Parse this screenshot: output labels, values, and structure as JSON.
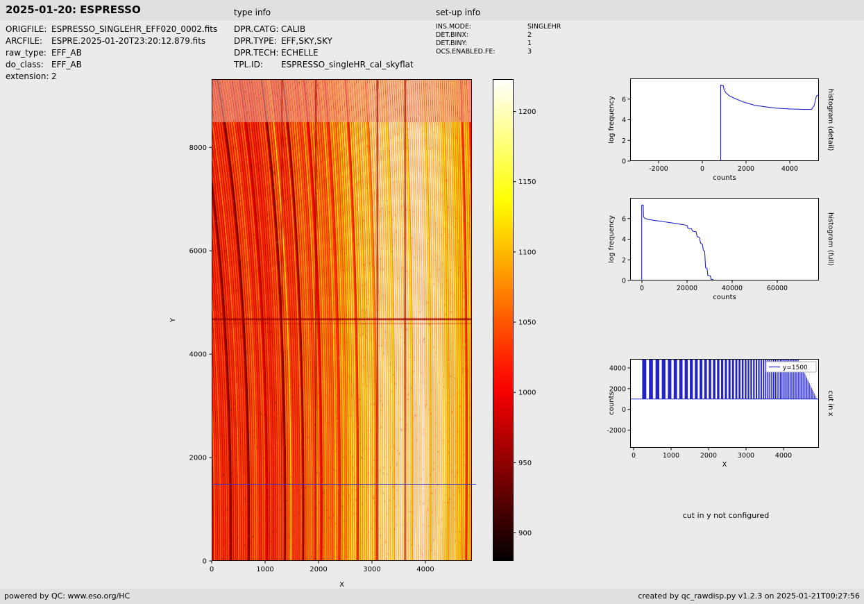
{
  "header": {
    "title": "2025-01-20: ESPRESSO",
    "type_info_label": "type info",
    "setup_info_label": "set-up info"
  },
  "file_info": {
    "rows": [
      {
        "label": "ORIGFILE:",
        "value": "ESPRESSO_SINGLEHR_EFF020_0002.fits"
      },
      {
        "label": "ARCFILE:",
        "value": "ESPRE.2025-01-20T23:20:12.879.fits"
      },
      {
        "label": "raw_type:",
        "value": "EFF_AB"
      },
      {
        "label": "do_class:",
        "value": "EFF_AB"
      },
      {
        "label": "extension:",
        "value": "2"
      }
    ]
  },
  "type_info": {
    "rows": [
      {
        "label": "DPR.CATG:",
        "value": "CALIB"
      },
      {
        "label": "DPR.TYPE:",
        "value": "EFF,SKY,SKY"
      },
      {
        "label": "DPR.TECH:",
        "value": "ECHELLE"
      },
      {
        "label": "TPL.ID:",
        "value": "ESPRESSO_singleHR_cal_skyflat"
      }
    ]
  },
  "setup_info": {
    "rows": [
      {
        "label": "INS.MODE:",
        "value": "SINGLEHR"
      },
      {
        "label": "DET.BINX:",
        "value": "2"
      },
      {
        "label": "DET.BINY:",
        "value": "1"
      },
      {
        "label": "OCS.ENABLED.FE:",
        "value": "3"
      }
    ]
  },
  "footer": {
    "left": "powered by QC: www.eso.org/HC",
    "right": "created by qc_rawdisp.py v1.2.3 on 2025-01-21T00:27:56"
  },
  "colors": {
    "page_bg": "#ebebeb",
    "bar_bg": "#e0e0e0",
    "plot_bg": "#ffffff",
    "line_blue": "#2323c8",
    "frame": "#000000",
    "cut_line": "#3333cc"
  },
  "chart_data": [
    {
      "id": "raw_frame",
      "type": "heatmap",
      "xlabel": "X",
      "ylabel": "Y",
      "xlim": [
        0,
        4870
      ],
      "ylim": [
        0,
        9320
      ],
      "xticks": [
        0,
        1000,
        2000,
        3000,
        4000
      ],
      "yticks": [
        0,
        2000,
        4000,
        6000,
        8000
      ],
      "colormap": "hot",
      "colorbar": {
        "ticks": [
          900,
          950,
          1000,
          1050,
          1100,
          1150,
          1200
        ],
        "vmin": 880,
        "vmax": 1223
      },
      "features": {
        "cut_line_y": 1500,
        "dark_rows_y": [
          4600,
          4680
        ],
        "dark_cols_x": [
          1320,
          1950,
          3100,
          3620
        ],
        "bright_band_center_x": 3720,
        "background_counts": 1000,
        "order_peak_counts": 1230
      }
    },
    {
      "id": "histogram_detail",
      "type": "line",
      "side_label": "histogram (detail)",
      "xlabel": "counts",
      "ylabel": "log frequency",
      "xlim": [
        -3302,
        5333
      ],
      "ylim": [
        0,
        8
      ],
      "xticks": [
        -2000,
        0,
        2000,
        4000
      ],
      "yticks": [
        0,
        2,
        4,
        6
      ],
      "points": [
        [
          840,
          0
        ],
        [
          840,
          7.35
        ],
        [
          960,
          7.3
        ],
        [
          990,
          6.95
        ],
        [
          1080,
          6.6
        ],
        [
          1250,
          6.3
        ],
        [
          1500,
          6.05
        ],
        [
          1900,
          5.7
        ],
        [
          2400,
          5.4
        ],
        [
          2900,
          5.25
        ],
        [
          3400,
          5.12
        ],
        [
          4000,
          5.05
        ],
        [
          4600,
          5.0
        ],
        [
          5000,
          5.0
        ],
        [
          5120,
          5.4
        ],
        [
          5220,
          6.3
        ],
        [
          5333,
          6.4
        ]
      ]
    },
    {
      "id": "histogram_full",
      "type": "line",
      "side_label": "histogram (full)",
      "xlabel": "counts",
      "ylabel": "log frequency",
      "xlim": [
        -5230,
        78460
      ],
      "ylim": [
        0,
        8
      ],
      "xticks": [
        0,
        20000,
        40000,
        60000
      ],
      "yticks": [
        0,
        2,
        4,
        6
      ],
      "points": [
        [
          -100,
          0
        ],
        [
          -100,
          7.3
        ],
        [
          600,
          7.3
        ],
        [
          700,
          6.15
        ],
        [
          1500,
          6.0
        ],
        [
          3000,
          5.9
        ],
        [
          6000,
          5.8
        ],
        [
          10000,
          5.68
        ],
        [
          14000,
          5.55
        ],
        [
          18000,
          5.42
        ],
        [
          20000,
          5.32
        ],
        [
          20500,
          5.05
        ],
        [
          22000,
          5.0
        ],
        [
          22500,
          4.78
        ],
        [
          24000,
          4.72
        ],
        [
          24500,
          4.25
        ],
        [
          25500,
          4.15
        ],
        [
          26000,
          3.6
        ],
        [
          26800,
          3.5
        ],
        [
          27200,
          2.95
        ],
        [
          27800,
          2.8
        ],
        [
          28200,
          1.25
        ],
        [
          28900,
          1.15
        ],
        [
          29200,
          0.5
        ],
        [
          30300,
          0.45
        ],
        [
          30600,
          0.12
        ],
        [
          31500,
          0.08
        ],
        [
          32000,
          0
        ]
      ]
    },
    {
      "id": "cut_in_x",
      "type": "line",
      "side_label": "cut in x",
      "xlabel": "X",
      "ylabel": "counts",
      "xlim": [
        -92,
        4944
      ],
      "ylim": [
        -3700,
        4867
      ],
      "xticks": [
        0,
        1000,
        2000,
        3000,
        4000
      ],
      "yticks": [
        -2000,
        0,
        2000,
        4000
      ],
      "legend": {
        "label": "y=1500"
      },
      "bars": {
        "baseline": 1000,
        "top": 4867,
        "x_start": 230,
        "x_end": 4870,
        "taper_start": 4380,
        "taper_min": 1100,
        "gap_max": 190,
        "gap_min": 25,
        "gap_slope": 0.038
      }
    },
    {
      "id": "cut_in_y",
      "type": "note",
      "text": "cut in y not configured"
    }
  ]
}
